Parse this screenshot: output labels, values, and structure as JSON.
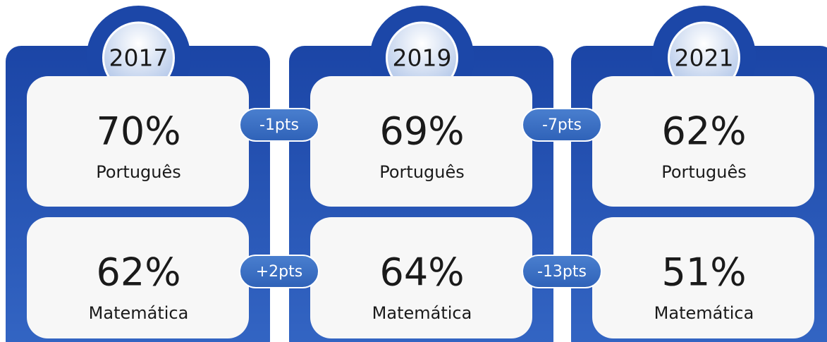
{
  "columns": [
    {
      "year": "2017",
      "items": [
        {
          "value": "70%",
          "label": "Português"
        },
        {
          "value": "62%",
          "label": "Matemática"
        }
      ]
    },
    {
      "year": "2019",
      "items": [
        {
          "value": "69%",
          "label": "Português"
        },
        {
          "value": "64%",
          "label": "Matemática"
        }
      ]
    },
    {
      "year": "2021",
      "items": [
        {
          "value": "62%",
          "label": "Português"
        },
        {
          "value": "51%",
          "label": "Matemática"
        }
      ]
    }
  ],
  "changes": [
    {
      "portugues": "-1pts",
      "matematica": "+2pts"
    },
    {
      "portugues": "-7pts",
      "matematica": "-13pts"
    }
  ]
}
